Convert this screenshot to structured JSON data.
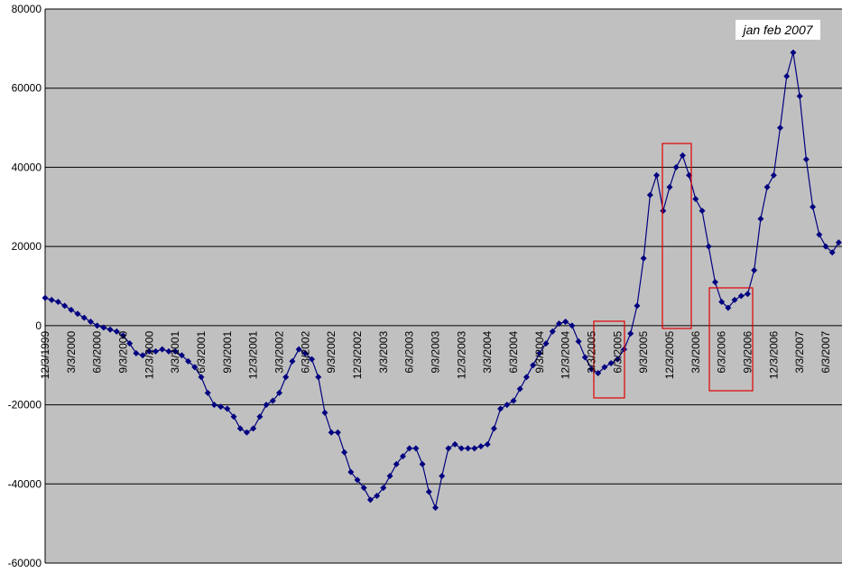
{
  "chart_data": {
    "type": "line",
    "annotation": "jan feb 2007",
    "categories": [
      "12/3/1999",
      null,
      null,
      null,
      "3/3/2000",
      null,
      null,
      null,
      "6/3/2000",
      null,
      null,
      null,
      "9/3/2000",
      null,
      null,
      null,
      "12/3/2000",
      null,
      null,
      null,
      "3/3/2001",
      null,
      null,
      null,
      "6/3/2001",
      null,
      null,
      null,
      "9/3/2001",
      null,
      null,
      null,
      "12/3/2001",
      null,
      null,
      null,
      "3/3/2002",
      null,
      null,
      null,
      "6/3/2002",
      null,
      null,
      null,
      "9/3/2002",
      null,
      null,
      null,
      "12/3/2002",
      null,
      null,
      null,
      "3/3/2003",
      null,
      null,
      null,
      "6/3/2003",
      null,
      null,
      null,
      "9/3/2003",
      null,
      null,
      null,
      "12/3/2003",
      null,
      null,
      null,
      "3/3/2004",
      null,
      null,
      null,
      "6/3/2004",
      null,
      null,
      null,
      "9/3/2004",
      null,
      null,
      null,
      "12/3/2004",
      null,
      null,
      null,
      "3/3/2005",
      null,
      null,
      null,
      "6/3/2005",
      null,
      null,
      null,
      "9/3/2005",
      null,
      null,
      null,
      "12/3/2005",
      null,
      null,
      null,
      "3/3/2006",
      null,
      null,
      null,
      "6/3/2006",
      null,
      null,
      null,
      "9/3/2006",
      null,
      null,
      null,
      "12/3/2006",
      null,
      null,
      null,
      "3/3/2007",
      null,
      null,
      null,
      "6/3/2007",
      null,
      null
    ],
    "series": [
      {
        "color": "#000080",
        "values": [
          7000,
          6500,
          6000,
          5000,
          4000,
          3000,
          2000,
          1000,
          0,
          -500,
          -1000,
          -1500,
          -2500,
          -4500,
          -7000,
          -7500,
          -6500,
          -6500,
          -6000,
          -6500,
          -6500,
          -7500,
          -9000,
          -10500,
          -13000,
          -17000,
          -20000,
          -20500,
          -21000,
          -23000,
          -26000,
          -27000,
          -26000,
          -23000,
          -20000,
          -19000,
          -17000,
          -13000,
          -9000,
          -6000,
          -7000,
          -8500,
          -13000,
          -22000,
          -27000,
          -27000,
          -32000,
          -37000,
          -39000,
          -41000,
          -44000,
          -43000,
          -41000,
          -38000,
          -35000,
          -33000,
          -31000,
          -31000,
          -35000,
          -42000,
          -46000,
          -38000,
          -31000,
          -30000,
          -31000,
          -31000,
          -31000,
          -30500,
          -30000,
          -26000,
          -21000,
          -20000,
          -19000,
          -16000,
          -13000,
          -10000,
          -7000,
          -4500,
          -1500,
          500,
          1000,
          0,
          -4000,
          -8000,
          -11000,
          -12000,
          -10500,
          -9500,
          -8500,
          -6000,
          -2000,
          5000,
          17000,
          33000,
          38000,
          29000,
          35000,
          40000,
          43000,
          38000,
          32000,
          29000,
          20000,
          11000,
          6000,
          4500,
          6500,
          7500,
          8000,
          14000,
          27000,
          35000,
          38000,
          50000,
          63000,
          69000,
          58000,
          42000,
          30000,
          23000,
          20000,
          18500,
          21000
        ]
      }
    ],
    "ylim": [
      -60000,
      80000
    ],
    "yticks": [
      -60000,
      -40000,
      -20000,
      0,
      20000,
      40000,
      60000,
      80000
    ],
    "grid": true
  }
}
